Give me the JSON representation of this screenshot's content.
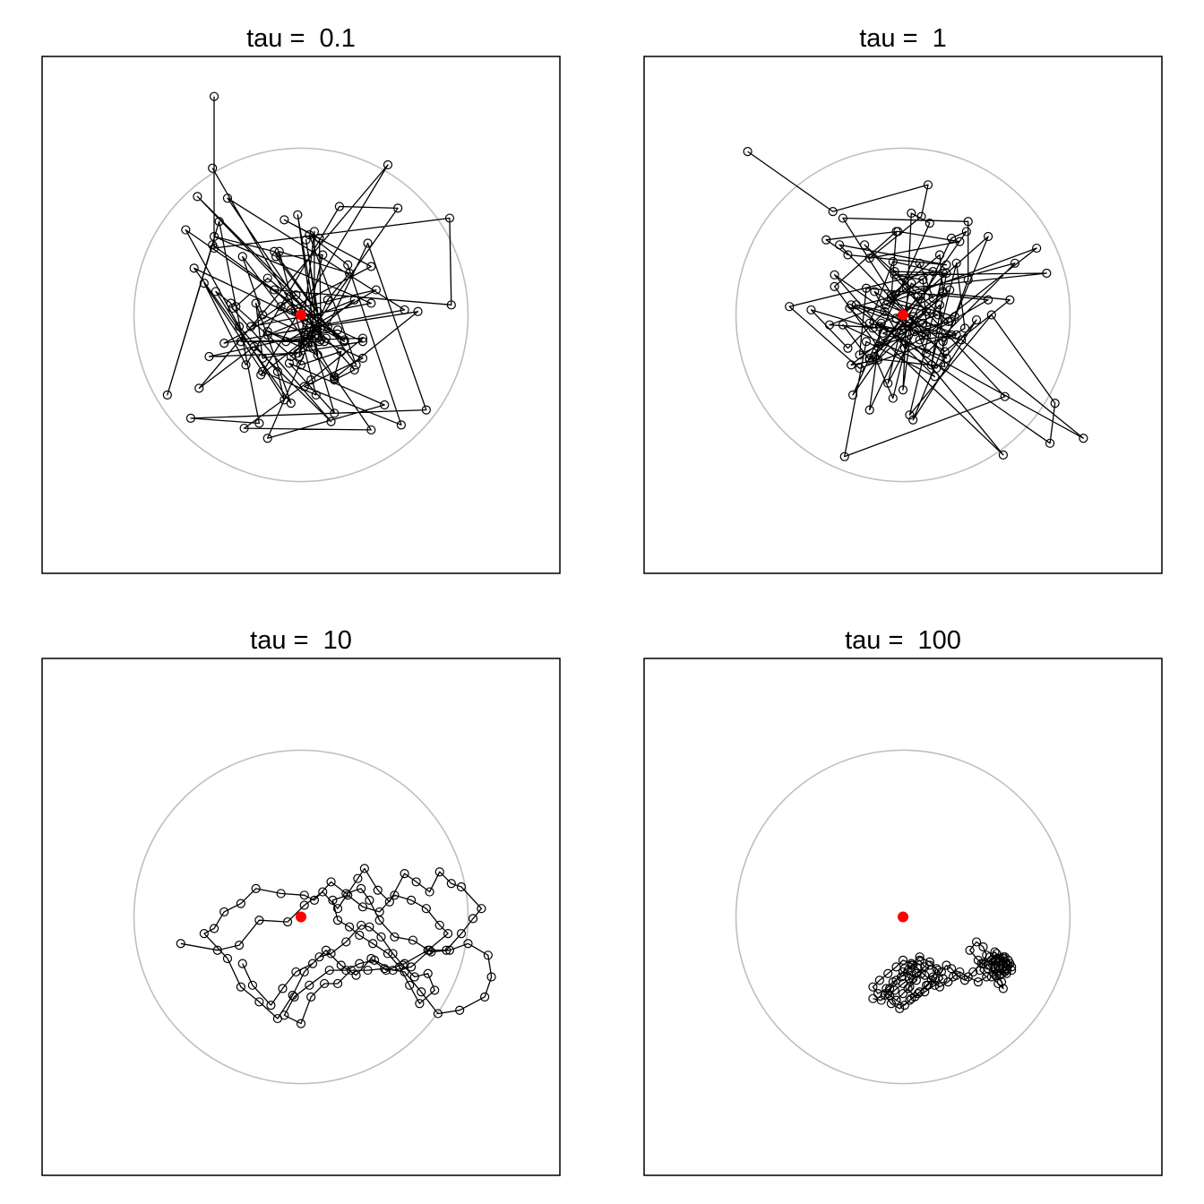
{
  "chart_data": [
    {
      "type": "line",
      "title": "tau =  0.1",
      "xlim": [
        -1.55,
        1.55
      ],
      "ylim": [
        -1.55,
        1.55
      ],
      "grid": false,
      "axes": false,
      "reference_circle": {
        "center": [
          0,
          0
        ],
        "radius": 1,
        "color": "#bebebe"
      },
      "reference_point": {
        "x": 0,
        "y": 0,
        "color": "#ff0000"
      },
      "x": [
        -0.52,
        -0.52,
        0.89,
        0.9,
        -0.16,
        0.15,
        0.32,
        0.2,
        0.04,
        -0.35,
        -0.23,
        0.37,
        0.02,
        0.6,
        0.28,
        0.05,
        0.33,
        -0.15,
        0.13,
        -0.01,
        0.08,
        0.08,
        -0.62,
        0.16,
        0.4,
        0.75,
        -0.66,
        -0.25,
        -0.49,
        -0.8,
        -0.53,
        0.26,
        -0.12,
        -0.03,
        -0.3,
        0.42,
        -0.52,
        -0.16,
        0.1,
        0.03,
        0.12,
        0.11,
        -0.1,
        0.42,
        -0.46,
        0.62,
        -0.44,
        0.14,
        0.08,
        0.06,
        -0.06,
        0.01,
        0.58,
        0.23,
        -0.33,
        -0.58,
        -0.23,
        0.09,
        -0.13,
        0.29,
        0.16,
        -0.2,
        0.5,
        -0.07,
        0.2,
        0.05,
        -0.06,
        0.45,
        -0.09,
        0.22,
        0.37,
        -0.23,
        -0.27,
        -0.06,
        -0.64,
        0.12,
        -0.02,
        -0.55,
        0.04,
        0.07,
        -0.2,
        0.1,
        -0.02,
        0.11,
        -0.36,
        0.37,
        0.06,
        -0.34,
        0.42,
        0.2,
        0.24,
        0.0,
        -0.39,
        -0.2,
        0.26,
        -0.69,
        -0.37,
        -0.14,
        -0.1,
        -0.51,
        -0.42,
        -0.41,
        0.18,
        -0.28,
        -0.61,
        0.52,
        -0.24,
        0.32,
        -0.2,
        0.7,
        0.2,
        -0.53
      ],
      "y": [
        1.31,
        0.4,
        0.58,
        0.06,
        0.15,
        -0.14,
        -0.33,
        -0.39,
        -0.17,
        0.35,
        0.0,
        -0.26,
        -0.43,
        -0.66,
        0.3,
        0.48,
        -0.3,
        0.35,
        0.36,
        -0.25,
        0.5,
        -0.02,
        0.71,
        -0.07,
        0.43,
        -0.57,
        -0.62,
        -0.65,
        0.56,
        -0.48,
        0.42,
        -0.16,
        0.05,
        0.12,
        -0.07,
        0.07,
        0.47,
        0.38,
        0.02,
        0.45,
        -0.15,
        0.46,
        0.57,
        0.29,
        -0.17,
        0.03,
        0.7,
        -0.16,
        -0.08,
        -0.12,
        -0.25,
        -0.17,
        0.64,
        0.65,
        -0.3,
        0.19,
        -0.34,
        -0.48,
        0.38,
        0.25,
        0.09,
        -0.74,
        -0.54,
        -0.29,
        -0.59,
        -0.08,
        0.03,
        0.15,
        -0.16,
        -0.09,
        -0.16,
        -0.26,
        0.07,
        -0.53,
        0.28,
        -0.08,
        -0.23,
        -0.25,
        -0.12,
        -0.19,
        -0.1,
        -0.24,
        0.6,
        -0.16,
        -0.16,
        -0.14,
        -0.39,
        -0.68,
        -0.69,
        -0.37,
        -0.22,
        -0.3,
        0.05,
        0.22,
        -0.15,
        0.51,
        -0.07,
        -0.34,
        -0.51,
        0.14,
        0.07,
        0.04,
        -0.64,
        -0.19,
        -0.44,
        0.9,
        -0.36,
        0.09,
        -0.12,
        0.02,
        -0.38,
        0.88
      ]
    },
    {
      "type": "line",
      "title": "tau =  1",
      "xlim": [
        -1.55,
        1.55
      ],
      "ylim": [
        -1.55,
        1.55
      ],
      "grid": false,
      "axes": false,
      "reference_circle": {
        "center": [
          0,
          0
        ],
        "radius": 1,
        "color": "#bebebe"
      },
      "reference_point": {
        "x": 0,
        "y": 0,
        "color": "#ff0000"
      },
      "x": [
        -0.93,
        -0.42,
        0.15,
        0.11,
        -0.2,
        0.34,
        -0.03,
        -0.46,
        -0.33,
        0.26,
        -0.38,
        0.14,
        -0.31,
        0.88,
        0.91,
        0.53,
        0.04,
        0.24,
        -0.06,
        -0.2,
        -0.01,
        0.6,
        -0.32,
        0.67,
        0.14,
        0.08,
        -0.44,
        0.8,
        0.1,
        0.32,
        -0.1,
        0.18,
        -0.68,
        -0.26,
        0.29,
        0.07,
        -0.09,
        0.05,
        0.18,
        0.1,
        -0.06,
        -0.36,
        0.39,
        0.39,
        0.31,
        -0.07,
        -0.04,
        -0.41,
        -0.15,
        0.27,
        -0.23,
        0.61,
        -0.35,
        -0.22,
        0.19,
        -0.13,
        -0.2,
        0.29,
        0.38,
        -0.3,
        0.16,
        0.05,
        0.0,
        0.06,
        -0.06,
        -0.17,
        0.09,
        -0.2,
        -0.36,
        0.2,
        0.44,
        0.06,
        0.51,
        -0.04,
        0.25,
        0.64,
        0.24,
        -0.31,
        -0.15,
        0.14,
        -0.05,
        0.26,
        0.17,
        0.32,
        0.37,
        0.24,
        -0.17,
        0.01,
        0.51,
        -0.22,
        -0.26,
        0.12,
        0.22,
        0.25,
        -0.2,
        0.28,
        0.03,
        -0.41,
        -0.14,
        1.08,
        0.35,
        -0.28,
        -0.11,
        -0.33,
        -0.55,
        -0.18,
        0.24,
        0.22,
        -0.07,
        0.26,
        -0.12,
        0.21,
        -0.09,
        0.02,
        0.86,
        -0.05,
        0.12,
        0.14,
        0.29
      ],
      "y": [
        0.98,
        0.62,
        0.78,
        0.59,
        0.34,
        0.44,
        0.5,
        0.45,
        0.36,
        0.3,
        0.42,
        -0.12,
        0.06,
        -0.77,
        -0.53,
        0.0,
        -0.6,
        0.25,
        0.32,
        -0.05,
        -0.09,
        -0.84,
        0.04,
        0.31,
        -0.23,
        -0.09,
        -0.06,
        0.4,
        -0.15,
        -0.12,
        0.06,
        0.26,
        0.05,
        -0.32,
        -0.12,
        -0.1,
        -0.41,
        0.19,
        0.1,
        0.31,
        0.11,
        0.58,
        0.56,
        0.21,
        -0.01,
        0.1,
        0.5,
        0.17,
        -0.19,
        -0.04,
        0.42,
        -0.49,
        -0.85,
        -0.16,
        -0.37,
        -0.05,
        -0.57,
        0.46,
        0.5,
        -0.48,
        0.55,
        0.61,
        -0.45,
        -0.01,
        -0.5,
        -0.25,
        0.11,
        -0.27,
        -0.06,
        -0.32,
        -0.03,
        -0.63,
        0.47,
        -0.02,
        -0.22,
        0.09,
        0.13,
        -0.3,
        -0.27,
        0.02,
        0.26,
        0.25,
        -0.3,
        0.31,
        -0.08,
        -0.16,
        0.14,
        -0.2,
        0.09,
        0.16,
        -0.24,
        -0.05,
        0.06,
        -0.31,
        -0.26,
        0.15,
        -0.07,
        0.24,
        -0.07,
        -0.74,
        -0.15,
        0.06,
        0.02,
        -0.2,
        0.03,
        -0.08,
        0.14,
        0.36,
        0.12,
        -0.26,
        -0.11,
        0.0,
        0.08,
        0.16,
        0.25,
        0.24,
        0.21,
        -0.07,
        -0.04
      ]
    },
    {
      "type": "line",
      "title": "tau =  10",
      "xlim": [
        -1.55,
        1.55
      ],
      "ylim": [
        -1.55,
        1.55
      ],
      "grid": false,
      "axes": false,
      "reference_circle": {
        "center": [
          0,
          0
        ],
        "radius": 1,
        "color": "#bebebe"
      },
      "reference_point": {
        "x": 0,
        "y": 0,
        "color": "#ff0000"
      },
      "x": [
        -0.72,
        -0.5,
        -0.37,
        -0.25,
        -0.08,
        0.02,
        0.13,
        0.22,
        0.34,
        0.38,
        0.46,
        0.53,
        0.62,
        0.69,
        0.77,
        0.83,
        0.9,
        0.96,
        1.08,
        1.03,
        0.96,
        0.87,
        0.77,
        0.66,
        0.55,
        0.44,
        0.35,
        0.27,
        0.17,
        0.05,
        -0.04,
        -0.1,
        0.0,
        0.06,
        0.14,
        0.22,
        0.3,
        0.4,
        0.5,
        0.62,
        0.72,
        0.82,
        0.95,
        1.1,
        1.14,
        1.12,
        1.0,
        0.89,
        0.78,
        0.67,
        0.56,
        0.47,
        0.41,
        0.36,
        0.27,
        0.18,
        0.08,
        0.02,
        -0.12,
        -0.27,
        -0.36,
        -0.46,
        -0.52,
        -0.58,
        -0.44,
        -0.36,
        -0.25,
        -0.14,
        -0.05,
        0.02,
        0.11,
        0.18,
        0.27,
        0.36,
        0.41,
        0.48,
        0.55,
        0.61,
        0.68,
        0.76,
        0.8,
        0.71,
        0.65,
        0.59,
        0.52,
        0.43,
        0.35,
        0.29,
        0.22,
        0.19,
        0.28,
        0.37,
        0.47,
        0.56,
        0.66,
        0.75,
        0.83,
        0.88,
        0.76,
        0.62,
        0.51,
        0.42,
        0.33,
        0.24,
        0.15,
        0.07,
        -0.03,
        -0.11,
        -0.18,
        -0.29,
        -0.35
      ],
      "y": [
        -0.16,
        -0.2,
        -0.17,
        -0.02,
        -0.03,
        0.07,
        0.15,
        0.05,
        0.23,
        0.29,
        0.16,
        0.09,
        0.26,
        0.21,
        0.15,
        0.27,
        0.2,
        0.18,
        0.05,
        -0.01,
        -0.1,
        -0.2,
        -0.2,
        -0.3,
        -0.32,
        -0.26,
        -0.28,
        -0.32,
        -0.32,
        -0.41,
        -0.48,
        -0.59,
        -0.64,
        -0.48,
        -0.4,
        -0.4,
        -0.32,
        -0.32,
        -0.31,
        -0.33,
        -0.45,
        -0.58,
        -0.56,
        -0.48,
        -0.36,
        -0.23,
        -0.16,
        -0.2,
        -0.21,
        -0.14,
        -0.12,
        -0.02,
        0.1,
        0.17,
        0.14,
        0.21,
        0.1,
        0.13,
        0.14,
        0.17,
        0.08,
        0.03,
        -0.07,
        -0.1,
        -0.25,
        -0.42,
        -0.51,
        -0.61,
        -0.47,
        -0.33,
        -0.24,
        -0.22,
        -0.15,
        -0.05,
        -0.06,
        -0.12,
        -0.22,
        -0.29,
        -0.36,
        -0.34,
        -0.44,
        -0.52,
        -0.41,
        -0.3,
        -0.22,
        -0.16,
        -0.11,
        -0.06,
        -0.02,
        0.1,
        0.13,
        0.06,
        0.03,
        0.13,
        0.1,
        0.05,
        -0.05,
        -0.1,
        -0.2,
        -0.28,
        -0.32,
        -0.25,
        -0.35,
        -0.29,
        -0.2,
        -0.28,
        -0.33,
        -0.43,
        -0.53,
        -0.41,
        -0.28
      ]
    },
    {
      "type": "line",
      "title": "tau =  100",
      "xlim": [
        -1.55,
        1.55
      ],
      "ylim": [
        -1.55,
        1.55
      ],
      "grid": false,
      "axes": false,
      "reference_circle": {
        "center": [
          0,
          0
        ],
        "radius": 1,
        "color": "#bebebe"
      },
      "reference_point": {
        "x": 0,
        "y": 0,
        "color": "#ff0000"
      },
      "x": [
        -0.18,
        -0.13,
        -0.09,
        -0.04,
        0.01,
        0.05,
        0.1,
        0.15,
        0.18,
        0.2,
        0.16,
        0.11,
        0.06,
        0.03,
        0.07,
        0.13,
        0.19,
        0.24,
        0.21,
        0.16,
        0.1,
        0.05,
        0.0,
        -0.04,
        -0.08,
        -0.11,
        -0.07,
        -0.02,
        0.04,
        0.09,
        0.14,
        0.19,
        0.23,
        0.26,
        0.29,
        0.32,
        0.37,
        0.42,
        0.47,
        0.5,
        0.48,
        0.44,
        0.4,
        0.45,
        0.51,
        0.56,
        0.59,
        0.6,
        0.57,
        0.53,
        0.55,
        0.6,
        0.63,
        0.65,
        0.62,
        0.58,
        0.57,
        0.61,
        0.64,
        0.62,
        0.58,
        0.54,
        0.51,
        0.55,
        0.6,
        0.63,
        0.61,
        0.57,
        0.54,
        0.57,
        0.6,
        0.62,
        0.59,
        0.55,
        0.53,
        0.56,
        0.6,
        0.63,
        0.65,
        0.62,
        0.58,
        0.55,
        0.52,
        0.48,
        0.46,
        0.5,
        0.45,
        0.39,
        0.34,
        0.3,
        0.27,
        0.22,
        0.17,
        0.13,
        0.09,
        0.05,
        0.0,
        -0.04,
        -0.09,
        -0.14,
        -0.18,
        -0.15,
        -0.1,
        -0.06,
        -0.01,
        0.03,
        0.06,
        0.1,
        0.13,
        0.08,
        0.04,
        0.0,
        -0.05,
        -0.08,
        -0.04,
        0.0,
        0.04,
        0.08,
        0.05,
        0.01
      ],
      "y": [
        -0.49,
        -0.5,
        -0.46,
        -0.5,
        -0.53,
        -0.49,
        -0.45,
        -0.41,
        -0.36,
        -0.31,
        -0.29,
        -0.34,
        -0.37,
        -0.43,
        -0.48,
        -0.45,
        -0.41,
        -0.37,
        -0.32,
        -0.27,
        -0.24,
        -0.29,
        -0.33,
        -0.38,
        -0.43,
        -0.47,
        -0.52,
        -0.55,
        -0.5,
        -0.46,
        -0.41,
        -0.37,
        -0.33,
        -0.29,
        -0.31,
        -0.35,
        -0.38,
        -0.33,
        -0.28,
        -0.23,
        -0.18,
        -0.15,
        -0.2,
        -0.26,
        -0.31,
        -0.35,
        -0.39,
        -0.43,
        -0.4,
        -0.36,
        -0.31,
        -0.28,
        -0.26,
        -0.3,
        -0.34,
        -0.31,
        -0.27,
        -0.24,
        -0.28,
        -0.32,
        -0.35,
        -0.33,
        -0.29,
        -0.26,
        -0.24,
        -0.29,
        -0.33,
        -0.3,
        -0.27,
        -0.25,
        -0.28,
        -0.31,
        -0.34,
        -0.3,
        -0.26,
        -0.22,
        -0.25,
        -0.29,
        -0.32,
        -0.28,
        -0.25,
        -0.21,
        -0.24,
        -0.28,
        -0.32,
        -0.36,
        -0.39,
        -0.36,
        -0.33,
        -0.36,
        -0.39,
        -0.42,
        -0.38,
        -0.35,
        -0.31,
        -0.28,
        -0.26,
        -0.3,
        -0.34,
        -0.38,
        -0.42,
        -0.46,
        -0.43,
        -0.39,
        -0.36,
        -0.32,
        -0.29,
        -0.26,
        -0.3,
        -0.34,
        -0.37,
        -0.4,
        -0.44,
        -0.47,
        -0.5,
        -0.46,
        -0.42,
        -0.38,
        -0.35,
        -0.31
      ]
    }
  ]
}
